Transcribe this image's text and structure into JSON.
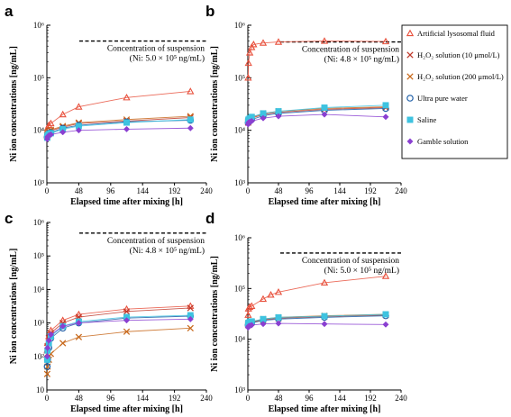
{
  "legend": {
    "entries": [
      {
        "name": "Artificial lysosomal fluid",
        "color": "#e8503c",
        "marker": "triangle"
      },
      {
        "name": "H₂O₂ solution (10 μmol/L)",
        "color": "#c0392b",
        "marker": "x"
      },
      {
        "name": "H₂O₂ solution (200 μmol/L)",
        "color": "#c8691c",
        "marker": "x"
      },
      {
        "name": "Ultra pure water",
        "color": "#1f5fa8",
        "marker": "circle"
      },
      {
        "name": "Saline",
        "color": "#3ec3e0",
        "marker": "square"
      },
      {
        "name": "Gamble solution",
        "color": "#8a3fd1",
        "marker": "diamond"
      }
    ]
  },
  "colors": {
    "Artificial lysosomal fluid": "#e8503c",
    "H2O2 10": "#c0392b",
    "H2O2 200": "#c8691c",
    "Ultra pure water": "#1f5fa8",
    "Saline": "#3ec3e0",
    "Gamble solution": "#8a3fd1",
    "dashed_line": "#000000"
  },
  "chart_data": [
    {
      "panel": "a",
      "type": "scatter",
      "xlabel": "Elapsed time after mixing [h]",
      "ylabel": "Ni ion concentrations [ng/mL]",
      "y_scale": "log",
      "xlim": [
        0,
        240
      ],
      "ylim": [
        1000,
        1000000
      ],
      "x_ticks": [
        0,
        48,
        96,
        144,
        192,
        240
      ],
      "y_ticks": [
        1000,
        10000,
        100000,
        1000000
      ],
      "y_tick_labels": [
        "10³",
        "10⁴",
        "10⁵",
        "10⁶"
      ],
      "reference_line": {
        "value": 500000,
        "label_line1": "Concentration of suspension",
        "label_line2": "(Ni: 5.0 × 10⁵ ng/mL)"
      },
      "series": [
        {
          "name": "Artificial lysosomal fluid",
          "x": [
            0.5,
            1,
            3,
            6,
            24,
            48,
            120,
            216
          ],
          "y": [
            8000,
            11000,
            12500,
            13500,
            20000,
            28000,
            42000,
            55000
          ]
        },
        {
          "name": "H₂O₂ solution (10 μmol/L)",
          "x": [
            0.5,
            1,
            3,
            6,
            24,
            48,
            120,
            216
          ],
          "y": [
            8000,
            8800,
            9300,
            9800,
            11500,
            13500,
            15000,
            17500
          ]
        },
        {
          "name": "H₂O₂ solution (200 μmol/L)",
          "x": [
            0.5,
            1,
            3,
            6,
            24,
            48,
            120,
            216
          ],
          "y": [
            8200,
            9000,
            9600,
            10200,
            12000,
            14000,
            16000,
            18500
          ]
        },
        {
          "name": "Ultra pure water",
          "x": [
            0.5,
            1,
            3,
            6,
            24,
            48,
            120,
            216
          ],
          "y": [
            7500,
            8200,
            8800,
            9000,
            11000,
            12500,
            14500,
            15500
          ]
        },
        {
          "name": "Saline",
          "x": [
            0.5,
            1,
            3,
            6,
            24,
            48,
            120,
            216
          ],
          "y": [
            7200,
            8000,
            8500,
            8800,
            10500,
            12000,
            14000,
            16000
          ]
        },
        {
          "name": "Gamble solution",
          "x": [
            0.5,
            1,
            3,
            6,
            24,
            48,
            120,
            216
          ],
          "y": [
            6800,
            7500,
            8000,
            8300,
            9200,
            10000,
            10500,
            11000
          ]
        }
      ]
    },
    {
      "panel": "b",
      "type": "scatter",
      "xlabel": "Elapsed time after mixing [h]",
      "ylabel": "Ni ion concentrations [ng/mL]",
      "y_scale": "log",
      "xlim": [
        0,
        240
      ],
      "ylim": [
        1000,
        1000000
      ],
      "x_ticks": [
        0,
        48,
        96,
        144,
        192,
        240
      ],
      "y_ticks": [
        1000,
        10000,
        100000,
        1000000
      ],
      "y_tick_labels": [
        "10³",
        "10⁴",
        "10⁵",
        "10⁶"
      ],
      "reference_line": {
        "value": 480000,
        "label_line1": "Concentration of suspension",
        "label_line2": "(Ni: 4.8 × 10⁵ ng/mL)"
      },
      "series": [
        {
          "name": "Artificial lysosomal fluid",
          "x": [
            0.5,
            1,
            3,
            6,
            9,
            24,
            48,
            120,
            216
          ],
          "y": [
            100000,
            190000,
            300000,
            380000,
            430000,
            460000,
            480000,
            500000,
            490000
          ]
        },
        {
          "name": "H₂O₂ solution (10 μmol/L)",
          "x": [
            0.5,
            1,
            3,
            6,
            24,
            48,
            120,
            216
          ],
          "y": [
            14000,
            15000,
            16000,
            17000,
            20000,
            22000,
            25000,
            27000
          ]
        },
        {
          "name": "H₂O₂ solution (200 μmol/L)",
          "x": [
            0.5,
            1,
            3,
            6,
            24,
            48,
            120,
            216
          ],
          "y": [
            14500,
            15500,
            16500,
            17500,
            21000,
            23000,
            26000,
            28000
          ]
        },
        {
          "name": "Ultra pure water",
          "x": [
            0.5,
            1,
            3,
            6,
            24,
            48,
            120,
            216
          ],
          "y": [
            14000,
            15000,
            15500,
            16000,
            19000,
            21000,
            24000,
            26000
          ]
        },
        {
          "name": "Saline",
          "x": [
            0.5,
            1,
            3,
            6,
            24,
            48,
            120,
            216
          ],
          "y": [
            15000,
            16000,
            17000,
            18000,
            21000,
            23000,
            27000,
            30000
          ]
        },
        {
          "name": "Gamble solution",
          "x": [
            0.5,
            1,
            3,
            6,
            24,
            48,
            120,
            216
          ],
          "y": [
            13000,
            14000,
            14500,
            15000,
            17000,
            18500,
            20000,
            18000
          ]
        }
      ]
    },
    {
      "panel": "c",
      "type": "scatter",
      "xlabel": "Elapsed time after mixing [h]",
      "ylabel": "Ni ion concentrations [ng/mL]",
      "y_scale": "log",
      "xlim": [
        0,
        240
      ],
      "ylim": [
        10,
        1000000
      ],
      "x_ticks": [
        0,
        48,
        96,
        144,
        192,
        240
      ],
      "y_ticks": [
        10,
        100,
        1000,
        10000,
        100000,
        1000000
      ],
      "y_tick_labels": [
        "10",
        "10²",
        "10³",
        "10⁴",
        "10⁵",
        "10⁶"
      ],
      "reference_line": {
        "value": 480000,
        "label_line1": "Concentration of suspension",
        "label_line2": "(Ni: 4.8 × 10⁵ ng/mL)"
      },
      "series": [
        {
          "name": "Artificial lysosomal fluid",
          "x": [
            0.5,
            1,
            3,
            6,
            24,
            48,
            120,
            216
          ],
          "y": [
            150,
            250,
            400,
            600,
            1200,
            1800,
            2600,
            3200
          ]
        },
        {
          "name": "H₂O₂ solution (10 μmol/L)",
          "x": [
            0.5,
            1,
            3,
            6,
            24,
            48,
            120,
            216
          ],
          "y": [
            120,
            200,
            350,
            500,
            1000,
            1500,
            2200,
            2800
          ]
        },
        {
          "name": "H₂O₂ solution (200 μmol/L)",
          "x": [
            0.5,
            1,
            3,
            6,
            24,
            48,
            120,
            216
          ],
          "y": [
            30,
            50,
            80,
            120,
            250,
            380,
            550,
            700
          ]
        },
        {
          "name": "Ultra pure water",
          "x": [
            0.5,
            1,
            3,
            6,
            24,
            48,
            120,
            216
          ],
          "y": [
            50,
            80,
            180,
            350,
            700,
            1000,
            1400,
            1600
          ]
        },
        {
          "name": "Saline",
          "x": [
            0.5,
            1,
            3,
            6,
            24,
            48,
            120,
            216
          ],
          "y": [
            80,
            150,
            250,
            400,
            800,
            1100,
            1500,
            1700
          ]
        },
        {
          "name": "Gamble solution",
          "x": [
            0.5,
            1,
            3,
            6,
            24,
            48,
            120,
            216
          ],
          "y": [
            100,
            180,
            300,
            450,
            800,
            1000,
            1200,
            1300
          ]
        }
      ]
    },
    {
      "panel": "d",
      "type": "scatter",
      "xlabel": "Elapsed time after mixing [h]",
      "ylabel": "Ni ion concentrations [ng/mL]",
      "y_scale": "log",
      "xlim": [
        0,
        240
      ],
      "ylim": [
        1000,
        1000000
      ],
      "x_ticks": [
        0,
        48,
        96,
        144,
        192,
        240
      ],
      "y_ticks": [
        1000,
        10000,
        100000,
        1000000
      ],
      "y_tick_labels": [
        "10³",
        "10⁴",
        "10⁵",
        "10⁶"
      ],
      "reference_line": {
        "value": 500000,
        "label_line1": "Concentration of suspension",
        "label_line2": "(Ni: 5.0 × 10⁵ ng/mL)"
      },
      "series": [
        {
          "name": "Artificial lysosomal fluid",
          "x": [
            0.5,
            1,
            3,
            6,
            24,
            36,
            48,
            120,
            216
          ],
          "y": [
            30000,
            40000,
            43000,
            45000,
            62000,
            75000,
            85000,
            130000,
            175000
          ]
        },
        {
          "name": "H₂O₂ solution (10 μmol/L)",
          "x": [
            0.5,
            1,
            3,
            6,
            24,
            48,
            120,
            216
          ],
          "y": [
            19000,
            20000,
            21000,
            21500,
            24000,
            26000,
            28000,
            30000
          ]
        },
        {
          "name": "H₂O₂ solution (200 μmol/L)",
          "x": [
            0.5,
            1,
            3,
            6,
            24,
            48,
            120,
            216
          ],
          "y": [
            20000,
            21000,
            21500,
            22000,
            25000,
            27000,
            29000,
            31000
          ]
        },
        {
          "name": "Ultra pure water",
          "x": [
            0.5,
            1,
            3,
            6,
            24,
            48,
            120,
            216
          ],
          "y": [
            19000,
            20000,
            20500,
            21000,
            23500,
            25000,
            27000,
            29000
          ]
        },
        {
          "name": "Saline",
          "x": [
            0.5,
            1,
            3,
            6,
            24,
            48,
            120,
            216
          ],
          "y": [
            20000,
            21000,
            22000,
            22500,
            25000,
            27000,
            28500,
            31000
          ]
        },
        {
          "name": "Gamble solution",
          "x": [
            0.5,
            1,
            3,
            6,
            24,
            48,
            120,
            216
          ],
          "y": [
            17000,
            18000,
            18500,
            19000,
            20000,
            20500,
            20000,
            19500
          ]
        }
      ]
    }
  ]
}
